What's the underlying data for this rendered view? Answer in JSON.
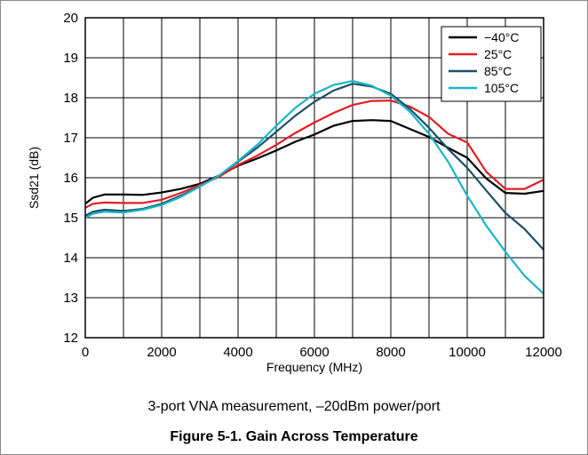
{
  "chart_data": {
    "type": "line",
    "xlabel": "Frequency (MHz)",
    "ylabel": "Ssd21 (dB)",
    "xlim": [
      0,
      12000
    ],
    "ylim": [
      12,
      20
    ],
    "xticks": [
      0,
      2000,
      4000,
      6000,
      8000,
      10000,
      12000
    ],
    "yticks": [
      12,
      13,
      14,
      15,
      16,
      17,
      18,
      19,
      20
    ],
    "grid": true,
    "legend_position": "top-right",
    "series": [
      {
        "name": "−40°C",
        "color": "#000000",
        "x": [
          0,
          200,
          500,
          1000,
          1500,
          2000,
          2500,
          3000,
          3500,
          4000,
          4500,
          5000,
          5500,
          6000,
          6500,
          7000,
          7500,
          8000,
          8500,
          9000,
          9500,
          10000,
          10500,
          11000,
          11500,
          12000
        ],
        "y": [
          15.35,
          15.5,
          15.58,
          15.58,
          15.57,
          15.63,
          15.72,
          15.85,
          16.05,
          16.3,
          16.48,
          16.68,
          16.9,
          17.08,
          17.3,
          17.42,
          17.44,
          17.42,
          17.22,
          17.02,
          16.75,
          16.5,
          15.98,
          15.62,
          15.6,
          15.67
        ]
      },
      {
        "name": "25°C",
        "color": "#e31e24",
        "x": [
          0,
          200,
          500,
          1000,
          1500,
          2000,
          2500,
          3000,
          3500,
          4000,
          4500,
          5000,
          5500,
          6000,
          6500,
          7000,
          7500,
          8000,
          8500,
          9000,
          9500,
          10000,
          10500,
          11000,
          11500,
          12000
        ],
        "y": [
          15.25,
          15.35,
          15.38,
          15.37,
          15.37,
          15.45,
          15.62,
          15.82,
          16.02,
          16.32,
          16.55,
          16.82,
          17.12,
          17.38,
          17.62,
          17.82,
          17.92,
          17.93,
          17.78,
          17.52,
          17.1,
          16.88,
          16.15,
          15.72,
          15.72,
          15.95
        ]
      },
      {
        "name": "85°C",
        "color": "#1c5166",
        "x": [
          0,
          200,
          500,
          1000,
          1500,
          2000,
          2500,
          3000,
          3500,
          4000,
          4500,
          5000,
          5500,
          6000,
          6500,
          7000,
          7500,
          8000,
          8500,
          9000,
          9500,
          10000,
          10500,
          11000,
          11500,
          12000
        ],
        "y": [
          15.05,
          15.15,
          15.2,
          15.17,
          15.22,
          15.35,
          15.55,
          15.78,
          16.05,
          16.4,
          16.75,
          17.15,
          17.55,
          17.9,
          18.18,
          18.35,
          18.28,
          18.1,
          17.72,
          17.25,
          16.72,
          16.25,
          15.68,
          15.12,
          14.72,
          14.2
        ]
      },
      {
        "name": "105°C",
        "color": "#1bb5c9",
        "x": [
          0,
          200,
          500,
          1000,
          1500,
          2000,
          2500,
          3000,
          3500,
          4000,
          4500,
          5000,
          5500,
          6000,
          6500,
          7000,
          7500,
          8000,
          8500,
          9000,
          9500,
          10000,
          10500,
          11000,
          11500,
          12000
        ],
        "y": [
          15.0,
          15.1,
          15.15,
          15.13,
          15.2,
          15.32,
          15.52,
          15.78,
          16.05,
          16.42,
          16.82,
          17.3,
          17.75,
          18.1,
          18.32,
          18.42,
          18.3,
          18.05,
          17.65,
          17.1,
          16.4,
          15.55,
          14.8,
          14.15,
          13.55,
          13.1
        ]
      }
    ]
  },
  "caption": "3-port VNA measurement, –20dBm power/port",
  "figure_title": "Figure 5-1. Gain Across Temperature"
}
